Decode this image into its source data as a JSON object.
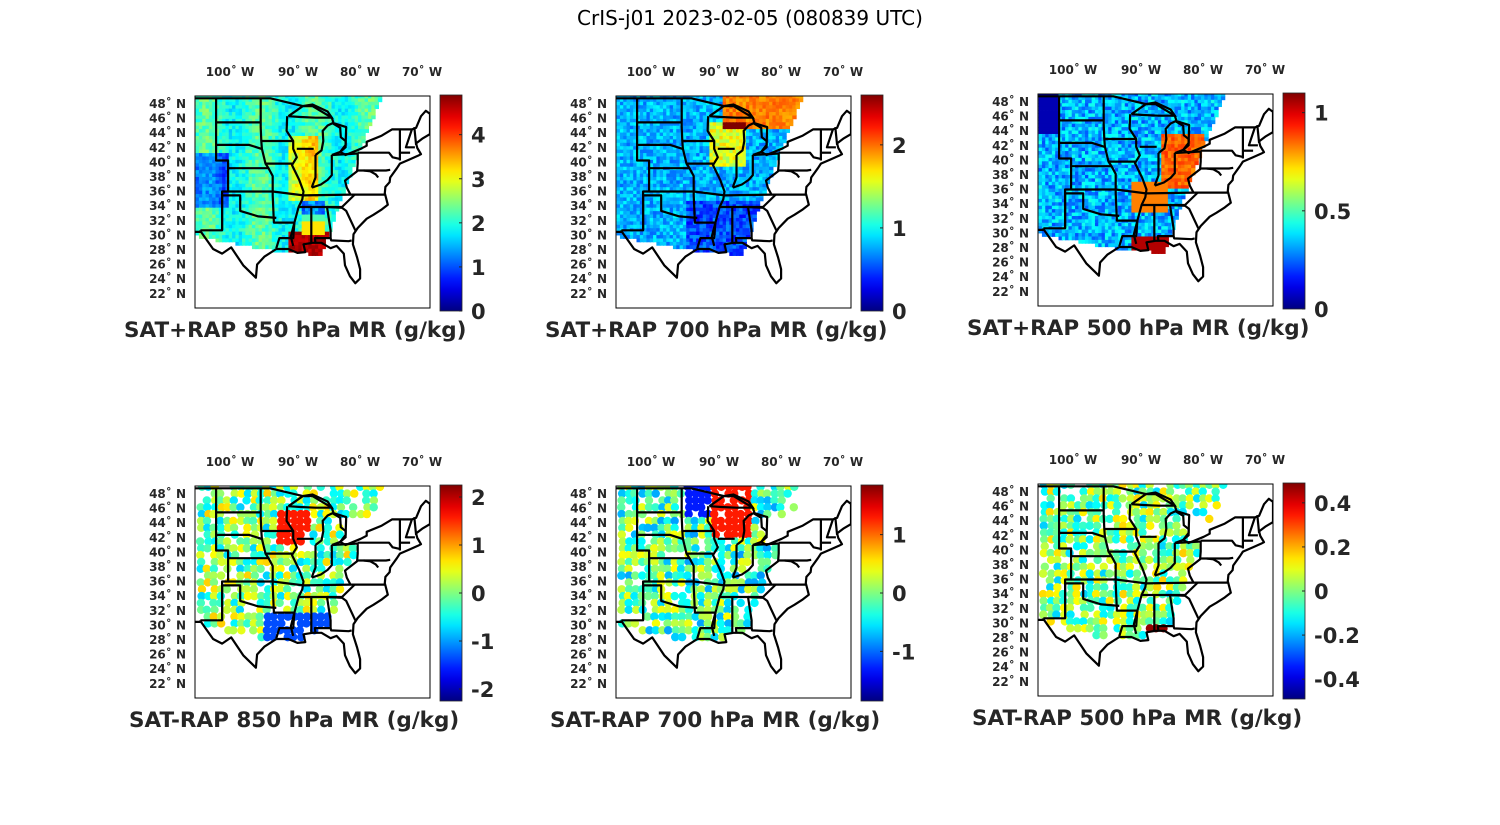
{
  "figure": {
    "title": "CrIS-j01 2023-02-05 (080839 UTC)"
  },
  "chart_data": [
    {
      "type": "heatmap",
      "title": "SAT+RAP 850 hPa MR (g/kg)",
      "colormap": "jet",
      "clim": [
        0,
        4.9
      ],
      "colorbar_ticks": [
        0,
        1,
        2,
        3,
        4
      ],
      "colorbar_tick_labels": [
        "0",
        "1",
        "2",
        "3",
        "4"
      ],
      "lon_ticks": [
        "100° W",
        "90° W",
        "80° W",
        "70° W"
      ],
      "lat_ticks": [
        "48° N",
        "46° N",
        "44° N",
        "42° N",
        "40° N",
        "38° N",
        "36° N",
        "34° N",
        "32° N",
        "30° N",
        "28° N",
        "26° N",
        "24° N",
        "22° N"
      ],
      "field": "continuous"
    },
    {
      "type": "heatmap",
      "title": "SAT+RAP 700 hPa MR (g/kg)",
      "colormap": "jet",
      "clim": [
        0,
        2.6
      ],
      "colorbar_ticks": [
        0,
        1,
        2
      ],
      "colorbar_tick_labels": [
        "0",
        "1",
        "2"
      ],
      "lon_ticks": [
        "100° W",
        "90° W",
        "80° W",
        "70° W"
      ],
      "lat_ticks": [
        "48° N",
        "46° N",
        "44° N",
        "42° N",
        "40° N",
        "38° N",
        "36° N",
        "34° N",
        "32° N",
        "30° N",
        "28° N",
        "26° N",
        "24° N",
        "22° N"
      ],
      "field": "continuous"
    },
    {
      "type": "heatmap",
      "title": "SAT+RAP 500 hPa MR (g/kg)",
      "colormap": "jet",
      "clim": [
        0,
        1.1
      ],
      "colorbar_ticks": [
        0,
        0.5,
        1
      ],
      "colorbar_tick_labels": [
        "0",
        "0.5",
        "1"
      ],
      "lon_ticks": [
        "100° W",
        "90° W",
        "80° W",
        "70° W"
      ],
      "lat_ticks": [
        "48° N",
        "46° N",
        "44° N",
        "42° N",
        "40° N",
        "38° N",
        "36° N",
        "34° N",
        "32° N",
        "30° N",
        "28° N",
        "26° N",
        "24° N",
        "22° N"
      ],
      "field": "continuous"
    },
    {
      "type": "heatmap",
      "title": "SAT-RAP 850 hPa MR (g/kg)",
      "colormap": "jet",
      "clim": [
        -2.25,
        2.25
      ],
      "colorbar_ticks": [
        -2,
        -1,
        0,
        1,
        2
      ],
      "colorbar_tick_labels": [
        "-2",
        "-1",
        "0",
        "1",
        "2"
      ],
      "lon_ticks": [
        "100° W",
        "90° W",
        "80° W",
        "70° W"
      ],
      "lat_ticks": [
        "48° N",
        "46° N",
        "44° N",
        "42° N",
        "40° N",
        "38° N",
        "36° N",
        "34° N",
        "32° N",
        "30° N",
        "28° N",
        "26° N",
        "24° N",
        "22° N"
      ],
      "field": "scattered"
    },
    {
      "type": "heatmap",
      "title": "SAT-RAP 700 hPa MR (g/kg)",
      "colormap": "jet",
      "clim": [
        -1.85,
        1.85
      ],
      "colorbar_ticks": [
        -1,
        0,
        1
      ],
      "colorbar_tick_labels": [
        "-1",
        "0",
        "1"
      ],
      "lon_ticks": [
        "100° W",
        "90° W",
        "80° W",
        "70° W"
      ],
      "lat_ticks": [
        "48° N",
        "46° N",
        "44° N",
        "42° N",
        "40° N",
        "38° N",
        "36° N",
        "34° N",
        "32° N",
        "30° N",
        "28° N",
        "26° N",
        "24° N",
        "22° N"
      ],
      "field": "scattered"
    },
    {
      "type": "heatmap",
      "title": "SAT-RAP 500 hPa MR (g/kg)",
      "colormap": "jet",
      "clim": [
        -0.49,
        0.49
      ],
      "colorbar_ticks": [
        -0.4,
        -0.2,
        0,
        0.2,
        0.4
      ],
      "colorbar_tick_labels": [
        "-0.4",
        "-0.2",
        "0",
        "0.2",
        "0.4"
      ],
      "lon_ticks": [
        "100° W",
        "90° W",
        "80° W",
        "70° W"
      ],
      "lat_ticks": [
        "48° N",
        "46° N",
        "44° N",
        "42° N",
        "40° N",
        "38° N",
        "36° N",
        "34° N",
        "32° N",
        "30° N",
        "28° N",
        "26° N",
        "24° N",
        "22° N"
      ],
      "field": "scattered"
    }
  ]
}
